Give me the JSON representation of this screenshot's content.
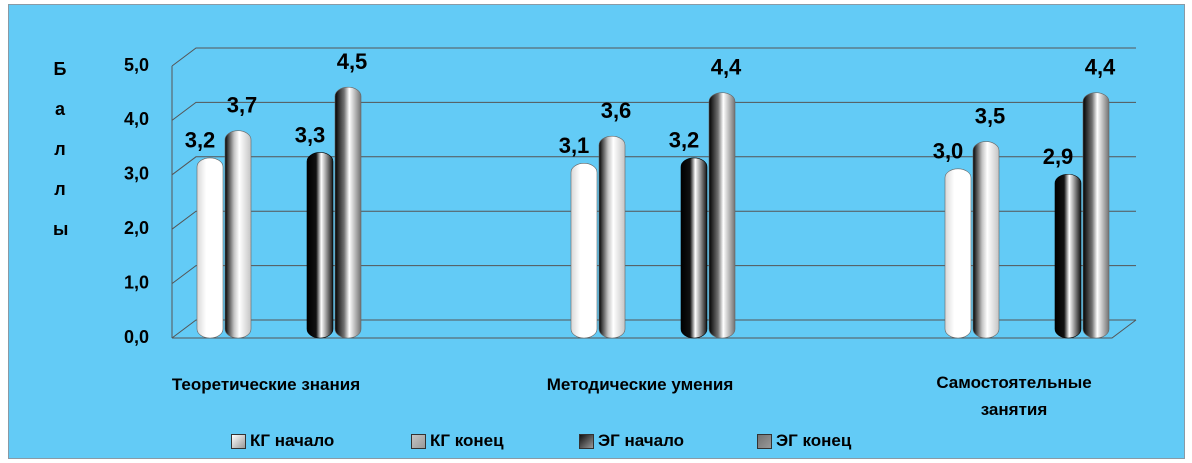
{
  "chart_data": {
    "type": "bar",
    "y_label": "Баллы",
    "categories": [
      "Теоретические знания",
      "Методические умения",
      "Самостоятельные занятия"
    ],
    "series": [
      {
        "name": "КГ начало",
        "color": "#ffffff",
        "values": [
          3.2,
          3.1,
          3.0
        ],
        "value_labels": [
          "3,2",
          "3,1",
          "3,0"
        ]
      },
      {
        "name": "КГ конец",
        "color": "#c4c4c4",
        "values": [
          3.7,
          3.6,
          3.5
        ],
        "value_labels": [
          "3,7",
          "3,6",
          "3,5"
        ]
      },
      {
        "name": "ЭГ начало",
        "color": "#111111",
        "values": [
          3.3,
          3.2,
          2.9
        ],
        "value_labels": [
          "3,3",
          "3,2",
          "2,9"
        ]
      },
      {
        "name": "ЭГ конец",
        "color": "#727272",
        "values": [
          4.5,
          4.4,
          4.4
        ],
        "value_labels": [
          "4,5",
          "4,4",
          "4,4"
        ]
      }
    ],
    "ylim": [
      0,
      5
    ],
    "yticks": [
      {
        "value": 0,
        "label": "0,0"
      },
      {
        "value": 1,
        "label": "1,0"
      },
      {
        "value": 2,
        "label": "2,0"
      },
      {
        "value": 3,
        "label": "3,0"
      },
      {
        "value": 4,
        "label": "4,0"
      },
      {
        "value": 5,
        "label": "5,0"
      }
    ],
    "grid": true
  }
}
